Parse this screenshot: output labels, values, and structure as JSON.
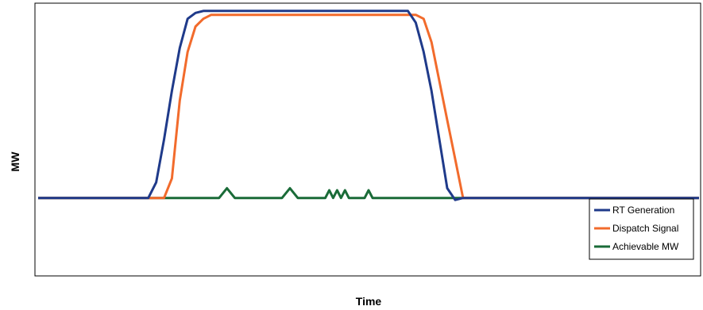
{
  "chart_data": {
    "type": "line",
    "title": "",
    "xlabel": "Time",
    "ylabel": "MW",
    "x_ticks_shown": false,
    "y_ticks_shown": false,
    "grid": false,
    "legend_placement": "bottom-right",
    "y_units_note": "relative (no axis values printed; 0 = baseline level)",
    "ylim": [
      -40,
      100
    ],
    "x": [
      0,
      35,
      40,
      45,
      48,
      52,
      55,
      58,
      62,
      66,
      70,
      80,
      90,
      100,
      110,
      120,
      130,
      140,
      150,
      160,
      170,
      180,
      190,
      200,
      210,
      220,
      230,
      240,
      250,
      260,
      270,
      280,
      290,
      300,
      310,
      320,
      330,
      340,
      350,
      360,
      365,
      370,
      375,
      380,
      385,
      390,
      395,
      400,
      405,
      410,
      415,
      420,
      425,
      430,
      440,
      450,
      460,
      470,
      480,
      490,
      500,
      510,
      520,
      530,
      540,
      550,
      560,
      570,
      580,
      590,
      600,
      610,
      620,
      630,
      640,
      650,
      660,
      670,
      680,
      690,
      700,
      710,
      720,
      730,
      740,
      750,
      760,
      770,
      780,
      790,
      800,
      810,
      820,
      830,
      840
    ],
    "series": [
      {
        "name": "RT Generation",
        "color": "#1f3a8a",
        "values": [
          0,
          0,
          0,
          0,
          0,
          0,
          0,
          0,
          0,
          0,
          0,
          0,
          0,
          0,
          0,
          0,
          0,
          0,
          8,
          30,
          55,
          77,
          92,
          95,
          96,
          96,
          96,
          96,
          96,
          96,
          96,
          96,
          96,
          96,
          96,
          96,
          96,
          96,
          96,
          96,
          96,
          96,
          96,
          96,
          96,
          96,
          96,
          96,
          96,
          96,
          96,
          96,
          96,
          96,
          96,
          96,
          96,
          96,
          90,
          75,
          55,
          30,
          5,
          -1,
          0,
          0,
          0,
          0,
          0,
          0,
          0,
          0,
          0,
          0,
          0,
          0,
          0,
          0,
          0,
          0,
          0,
          0,
          0,
          0,
          0,
          0,
          0,
          0,
          0,
          0,
          0,
          0,
          0,
          0,
          0
        ]
      },
      {
        "name": "Dispatch Signal",
        "color": "#f26b2c",
        "values": [
          0,
          0,
          0,
          0,
          0,
          0,
          0,
          0,
          0,
          0,
          0,
          0,
          0,
          0,
          0,
          0,
          0,
          0,
          0,
          0,
          10,
          50,
          75,
          88,
          92,
          94,
          94,
          94,
          94,
          94,
          94,
          94,
          94,
          94,
          94,
          94,
          94,
          94,
          94,
          94,
          94,
          94,
          94,
          94,
          94,
          94,
          94,
          94,
          94,
          94,
          94,
          94,
          94,
          94,
          94,
          94,
          94,
          94,
          94,
          92,
          80,
          60,
          40,
          20,
          0,
          0,
          0,
          0,
          0,
          0,
          0,
          0,
          0,
          0,
          0,
          0,
          0,
          0,
          0,
          0,
          0,
          0,
          0,
          0,
          0,
          0,
          0,
          0,
          0,
          0,
          0,
          0,
          0,
          0,
          0
        ]
      },
      {
        "name": "Achievable MW",
        "color": "#1a6b38",
        "values": [
          0,
          0,
          0,
          0,
          0,
          0,
          0,
          0,
          0,
          0,
          0,
          0,
          0,
          0,
          0,
          0,
          0,
          0,
          0,
          0,
          0,
          0,
          0,
          0,
          0,
          0,
          0,
          5,
          0,
          0,
          0,
          0,
          0,
          0,
          0,
          5,
          0,
          0,
          0,
          0,
          0,
          4,
          0,
          4,
          0,
          4,
          0,
          0,
          0,
          0,
          0,
          4,
          0,
          0,
          0,
          0,
          0,
          0,
          0,
          0,
          0,
          0,
          0,
          0,
          0,
          0,
          0,
          0,
          0,
          0,
          0,
          0,
          0,
          0,
          0,
          0,
          0,
          0,
          0,
          0,
          0,
          0,
          0,
          0,
          0,
          0,
          0,
          0,
          0,
          0,
          0,
          0,
          0,
          0,
          0
        ]
      }
    ]
  }
}
